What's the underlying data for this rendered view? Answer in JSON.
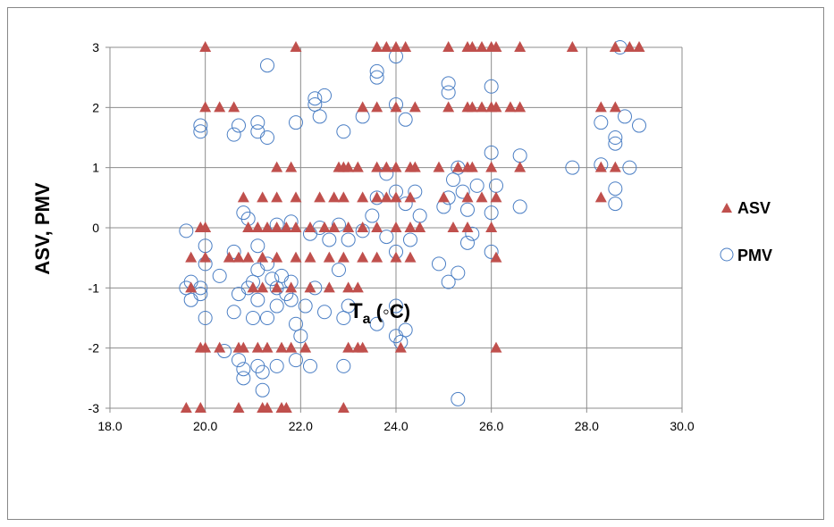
{
  "chart_data": {
    "type": "scatter",
    "title": "",
    "xlabel_main": "T",
    "xlabel_sub": "a",
    "xlabel_unit": " (◦C)",
    "ylabel": "ASV, PMV",
    "xlim": [
      18,
      30
    ],
    "ylim": [
      -3,
      3
    ],
    "x_ticks": [
      "18.0",
      "20.0",
      "22.0",
      "24.0",
      "26.0",
      "28.0",
      "30.0"
    ],
    "y_ticks": [
      "3",
      "2",
      "1",
      "0",
      "-1",
      "-2",
      "-3"
    ],
    "grid": true,
    "legend_position": "right",
    "series": [
      {
        "name": "ASV",
        "marker": "triangle",
        "color": "#C0504D",
        "points": [
          [
            20.0,
            3
          ],
          [
            21.9,
            3
          ],
          [
            23.6,
            3
          ],
          [
            23.8,
            3
          ],
          [
            24.0,
            3
          ],
          [
            24.2,
            3
          ],
          [
            25.1,
            3
          ],
          [
            25.5,
            3
          ],
          [
            25.6,
            3
          ],
          [
            25.8,
            3
          ],
          [
            26.0,
            3
          ],
          [
            26.1,
            3
          ],
          [
            26.6,
            3
          ],
          [
            27.7,
            3
          ],
          [
            28.6,
            3
          ],
          [
            28.9,
            3
          ],
          [
            29.1,
            3
          ],
          [
            20.0,
            2
          ],
          [
            20.3,
            2
          ],
          [
            20.6,
            2
          ],
          [
            23.3,
            2
          ],
          [
            23.6,
            2
          ],
          [
            24.0,
            2
          ],
          [
            24.4,
            2
          ],
          [
            25.1,
            2
          ],
          [
            25.5,
            2
          ],
          [
            25.6,
            2
          ],
          [
            25.8,
            2
          ],
          [
            26.0,
            2
          ],
          [
            26.1,
            2
          ],
          [
            26.4,
            2
          ],
          [
            26.6,
            2
          ],
          [
            28.3,
            2
          ],
          [
            28.6,
            2
          ],
          [
            21.5,
            1
          ],
          [
            21.8,
            1
          ],
          [
            22.8,
            1
          ],
          [
            22.9,
            1
          ],
          [
            23.0,
            1
          ],
          [
            23.2,
            1
          ],
          [
            23.6,
            1
          ],
          [
            23.8,
            1
          ],
          [
            24.0,
            1
          ],
          [
            24.3,
            1
          ],
          [
            24.4,
            1
          ],
          [
            24.9,
            1
          ],
          [
            25.3,
            1
          ],
          [
            25.5,
            1
          ],
          [
            25.6,
            1
          ],
          [
            26.0,
            1
          ],
          [
            26.6,
            1
          ],
          [
            28.3,
            1
          ],
          [
            28.6,
            1
          ],
          [
            20.8,
            0.5
          ],
          [
            21.2,
            0.5
          ],
          [
            21.5,
            0.5
          ],
          [
            21.9,
            0.5
          ],
          [
            22.4,
            0.5
          ],
          [
            22.7,
            0.5
          ],
          [
            22.9,
            0.5
          ],
          [
            23.3,
            0.5
          ],
          [
            23.6,
            0.5
          ],
          [
            23.8,
            0.5
          ],
          [
            24.0,
            0.5
          ],
          [
            24.3,
            0.5
          ],
          [
            25.0,
            0.5
          ],
          [
            25.5,
            0.5
          ],
          [
            25.8,
            0.5
          ],
          [
            26.1,
            0.5
          ],
          [
            28.3,
            0.5
          ],
          [
            19.9,
            0
          ],
          [
            20.0,
            0
          ],
          [
            20.9,
            0
          ],
          [
            21.1,
            0
          ],
          [
            21.3,
            0
          ],
          [
            21.5,
            0
          ],
          [
            21.7,
            0
          ],
          [
            21.9,
            0
          ],
          [
            22.2,
            0
          ],
          [
            22.5,
            0
          ],
          [
            22.7,
            0
          ],
          [
            23.0,
            0
          ],
          [
            23.3,
            0
          ],
          [
            23.6,
            0
          ],
          [
            24.0,
            0
          ],
          [
            24.3,
            0
          ],
          [
            24.5,
            0
          ],
          [
            25.2,
            0
          ],
          [
            25.5,
            0
          ],
          [
            26.0,
            0
          ],
          [
            19.7,
            -0.5
          ],
          [
            20.0,
            -0.5
          ],
          [
            20.5,
            -0.5
          ],
          [
            20.7,
            -0.5
          ],
          [
            20.9,
            -0.5
          ],
          [
            21.2,
            -0.5
          ],
          [
            21.5,
            -0.5
          ],
          [
            21.9,
            -0.5
          ],
          [
            22.2,
            -0.5
          ],
          [
            22.6,
            -0.5
          ],
          [
            22.9,
            -0.5
          ],
          [
            23.3,
            -0.5
          ],
          [
            23.6,
            -0.5
          ],
          [
            24.0,
            -0.5
          ],
          [
            24.3,
            -0.5
          ],
          [
            26.1,
            -0.5
          ],
          [
            19.7,
            -1
          ],
          [
            21.0,
            -1
          ],
          [
            21.2,
            -1
          ],
          [
            21.5,
            -1
          ],
          [
            21.8,
            -1
          ],
          [
            22.2,
            -1
          ],
          [
            22.6,
            -1
          ],
          [
            23.0,
            -1
          ],
          [
            23.2,
            -1
          ],
          [
            19.9,
            -2
          ],
          [
            20.0,
            -2
          ],
          [
            20.3,
            -2
          ],
          [
            20.7,
            -2
          ],
          [
            20.8,
            -2
          ],
          [
            21.1,
            -2
          ],
          [
            21.3,
            -2
          ],
          [
            21.6,
            -2
          ],
          [
            21.8,
            -2
          ],
          [
            22.1,
            -2
          ],
          [
            23.0,
            -2
          ],
          [
            23.2,
            -2
          ],
          [
            23.3,
            -2
          ],
          [
            24.1,
            -2
          ],
          [
            26.1,
            -2
          ],
          [
            19.6,
            -3
          ],
          [
            19.9,
            -3
          ],
          [
            20.7,
            -3
          ],
          [
            21.2,
            -3
          ],
          [
            21.3,
            -3
          ],
          [
            21.6,
            -3
          ],
          [
            21.7,
            -3
          ],
          [
            22.9,
            -3
          ]
        ]
      },
      {
        "name": "PMV",
        "marker": "circle",
        "color": "#4A7EC4",
        "points": [
          [
            19.6,
            -0.05
          ],
          [
            19.6,
            -1.0
          ],
          [
            19.7,
            -0.9
          ],
          [
            19.7,
            -1.2
          ],
          [
            19.9,
            -1.1
          ],
          [
            19.9,
            -1.0
          ],
          [
            20.0,
            -1.5
          ],
          [
            20.0,
            -0.3
          ],
          [
            20.0,
            -0.6
          ],
          [
            20.3,
            -0.8
          ],
          [
            20.4,
            -2.05
          ],
          [
            20.6,
            -0.4
          ],
          [
            20.6,
            -1.4
          ],
          [
            20.7,
            -1.1
          ],
          [
            20.7,
            -2.2
          ],
          [
            20.8,
            -2.35
          ],
          [
            20.8,
            -2.5
          ],
          [
            20.9,
            0.15
          ],
          [
            20.9,
            -1.0
          ],
          [
            21.0,
            -0.9
          ],
          [
            21.1,
            -1.2
          ],
          [
            21.1,
            -0.7
          ],
          [
            21.1,
            -2.3
          ],
          [
            21.2,
            -2.7
          ],
          [
            21.2,
            -2.4
          ],
          [
            21.3,
            -1.5
          ],
          [
            21.3,
            -0.6
          ],
          [
            21.4,
            -0.85
          ],
          [
            21.5,
            -1.3
          ],
          [
            21.5,
            -1.0
          ],
          [
            21.5,
            -2.3
          ],
          [
            21.6,
            -0.8
          ],
          [
            21.7,
            -1.1
          ],
          [
            21.8,
            -0.9
          ],
          [
            21.8,
            -1.2
          ],
          [
            21.9,
            -2.2
          ],
          [
            21.9,
            -1.6
          ],
          [
            22.0,
            -1.8
          ],
          [
            22.1,
            -1.3
          ],
          [
            22.2,
            -2.3
          ],
          [
            19.9,
            1.6
          ],
          [
            19.9,
            1.7
          ],
          [
            20.6,
            1.55
          ],
          [
            20.7,
            1.7
          ],
          [
            21.1,
            1.6
          ],
          [
            21.1,
            1.75
          ],
          [
            21.3,
            1.5
          ],
          [
            21.3,
            2.7
          ],
          [
            21.9,
            1.75
          ],
          [
            22.3,
            2.15
          ],
          [
            22.3,
            2.05
          ],
          [
            22.5,
            2.2
          ],
          [
            22.4,
            1.85
          ],
          [
            22.9,
            1.6
          ],
          [
            23.3,
            1.85
          ],
          [
            23.6,
            2.5
          ],
          [
            23.6,
            2.6
          ],
          [
            24.0,
            2.05
          ],
          [
            24.0,
            2.85
          ],
          [
            24.2,
            1.8
          ],
          [
            25.1,
            2.4
          ],
          [
            25.1,
            2.25
          ],
          [
            26.0,
            2.35
          ],
          [
            28.3,
            1.75
          ],
          [
            28.6,
            1.4
          ],
          [
            28.6,
            1.5
          ],
          [
            28.8,
            1.85
          ],
          [
            29.1,
            1.7
          ],
          [
            28.7,
            3.0
          ],
          [
            23.6,
            0.5
          ],
          [
            23.8,
            0.9
          ],
          [
            24.0,
            0.6
          ],
          [
            24.2,
            0.4
          ],
          [
            24.4,
            0.6
          ],
          [
            24.5,
            0.2
          ],
          [
            25.0,
            0.35
          ],
          [
            25.1,
            0.5
          ],
          [
            25.2,
            0.8
          ],
          [
            25.3,
            1.0
          ],
          [
            25.4,
            0.6
          ],
          [
            25.5,
            0.3
          ],
          [
            25.7,
            0.7
          ],
          [
            26.0,
            1.25
          ],
          [
            26.0,
            0.25
          ],
          [
            26.1,
            0.7
          ],
          [
            26.6,
            1.2
          ],
          [
            26.6,
            0.35
          ],
          [
            27.7,
            1.0
          ],
          [
            28.3,
            1.05
          ],
          [
            28.6,
            0.65
          ],
          [
            28.6,
            0.4
          ],
          [
            28.9,
            1.0
          ],
          [
            20.8,
            0.25
          ],
          [
            21.5,
            0.05
          ],
          [
            21.8,
            0.1
          ],
          [
            22.2,
            -0.1
          ],
          [
            22.4,
            0.0
          ],
          [
            22.6,
            -0.2
          ],
          [
            22.8,
            0.05
          ],
          [
            23.0,
            -0.2
          ],
          [
            23.3,
            -0.05
          ],
          [
            23.5,
            0.2
          ],
          [
            23.8,
            -0.15
          ],
          [
            24.0,
            -0.4
          ],
          [
            24.3,
            -0.2
          ],
          [
            24.9,
            -0.6
          ],
          [
            25.1,
            -0.9
          ],
          [
            25.3,
            -0.75
          ],
          [
            25.5,
            -0.25
          ],
          [
            25.6,
            -0.1
          ],
          [
            26.0,
            -0.4
          ],
          [
            22.3,
            -1.0
          ],
          [
            22.5,
            -1.4
          ],
          [
            22.8,
            -0.7
          ],
          [
            22.9,
            -1.5
          ],
          [
            23.0,
            -1.3
          ],
          [
            23.6,
            -1.6
          ],
          [
            24.0,
            -1.3
          ],
          [
            24.0,
            -1.8
          ],
          [
            24.1,
            -1.9
          ],
          [
            24.2,
            -1.7
          ],
          [
            22.9,
            -2.3
          ],
          [
            25.3,
            -2.85
          ],
          [
            21.1,
            -0.3
          ],
          [
            21.0,
            -1.5
          ]
        ]
      }
    ]
  }
}
